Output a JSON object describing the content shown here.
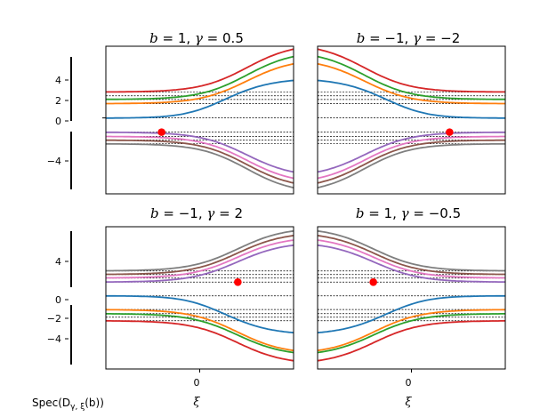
{
  "chart_data": {
    "type": "line",
    "xlabel": "ξ",
    "xticks": [
      "0"
    ],
    "ylabel_left": "Spec(D_{γ,ξ}(b))",
    "yticks": [
      "4",
      "2",
      "0",
      "−2",
      "−4"
    ],
    "xlim": [
      -1.6,
      1.6
    ],
    "ylim": [
      -7.2,
      6.8
    ],
    "band_levels_per_panel_sign": [
      0,
      1.35,
      1.75,
      2.1,
      2.45
    ],
    "series_colors": [
      "#1f77b4",
      "#ff7f0e",
      "#2ca02c",
      "#d62728",
      "#9467bd",
      "#e377c2",
      "#8c564b",
      "#7f7f7f"
    ],
    "panels": [
      {
        "title": "b = 1, γ = 0.5",
        "title_parts": {
          "b": "1",
          "g": "0.5"
        },
        "direction": 1,
        "upper": "bands",
        "marker_x": -0.65,
        "marker_y": -1.35
      },
      {
        "title": "b = −1, γ = −2",
        "title_parts": {
          "b": "−1",
          "g": "−2"
        },
        "direction": -1,
        "upper": "bands",
        "marker_x": 0.65,
        "marker_y": -1.35
      },
      {
        "title": "b = −1, γ = 2",
        "title_parts": {
          "b": "−1",
          "g": "2"
        },
        "direction": -1,
        "upper": "flat",
        "marker_x": 0.65,
        "marker_y": 1.35
      },
      {
        "title": "b = 1, γ = −0.5",
        "title_parts": {
          "b": "1",
          "g": "−0.5"
        },
        "direction": 1,
        "upper": "flat",
        "marker_x": -0.65,
        "marker_y": 1.35
      }
    ]
  }
}
